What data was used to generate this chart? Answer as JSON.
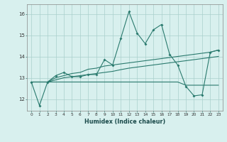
{
  "x": [
    0,
    1,
    2,
    3,
    4,
    5,
    6,
    7,
    8,
    9,
    10,
    11,
    12,
    13,
    14,
    15,
    16,
    17,
    18,
    19,
    20,
    21,
    22,
    23
  ],
  "line_main": [
    12.8,
    11.7,
    12.8,
    13.1,
    13.25,
    13.05,
    13.05,
    13.15,
    13.15,
    13.85,
    13.6,
    14.85,
    16.1,
    15.1,
    14.6,
    15.25,
    15.5,
    14.1,
    13.6,
    12.6,
    12.15,
    12.2,
    14.2,
    14.3
  ],
  "line_upper_trend": [
    12.8,
    12.8,
    12.8,
    13.0,
    13.1,
    13.2,
    13.25,
    13.4,
    13.45,
    13.55,
    13.6,
    13.65,
    13.7,
    13.75,
    13.8,
    13.85,
    13.9,
    13.95,
    14.0,
    14.05,
    14.1,
    14.15,
    14.2,
    14.3
  ],
  "line_mid_trend": [
    12.8,
    12.8,
    12.8,
    12.9,
    13.0,
    13.05,
    13.1,
    13.15,
    13.2,
    13.25,
    13.3,
    13.38,
    13.45,
    13.5,
    13.55,
    13.6,
    13.65,
    13.7,
    13.75,
    13.8,
    13.85,
    13.9,
    13.95,
    14.0
  ],
  "line_lower_flat": [
    12.8,
    12.8,
    12.8,
    12.8,
    12.8,
    12.8,
    12.8,
    12.8,
    12.8,
    12.8,
    12.8,
    12.8,
    12.8,
    12.8,
    12.8,
    12.8,
    12.8,
    12.8,
    12.8,
    12.65,
    12.65,
    12.65,
    12.65,
    12.65
  ],
  "bg_color": "#d8f0ee",
  "line_color": "#2a7a6e",
  "grid_color": "#aacfcc",
  "xlabel": "Humidex (Indice chaleur)",
  "yticks": [
    12,
    13,
    14,
    15,
    16
  ],
  "xlim": [
    -0.5,
    23.5
  ],
  "ylim": [
    11.45,
    16.45
  ],
  "xticks": [
    0,
    1,
    2,
    3,
    4,
    5,
    6,
    7,
    8,
    9,
    10,
    11,
    12,
    13,
    14,
    15,
    16,
    17,
    18,
    19,
    20,
    21,
    22,
    23
  ]
}
